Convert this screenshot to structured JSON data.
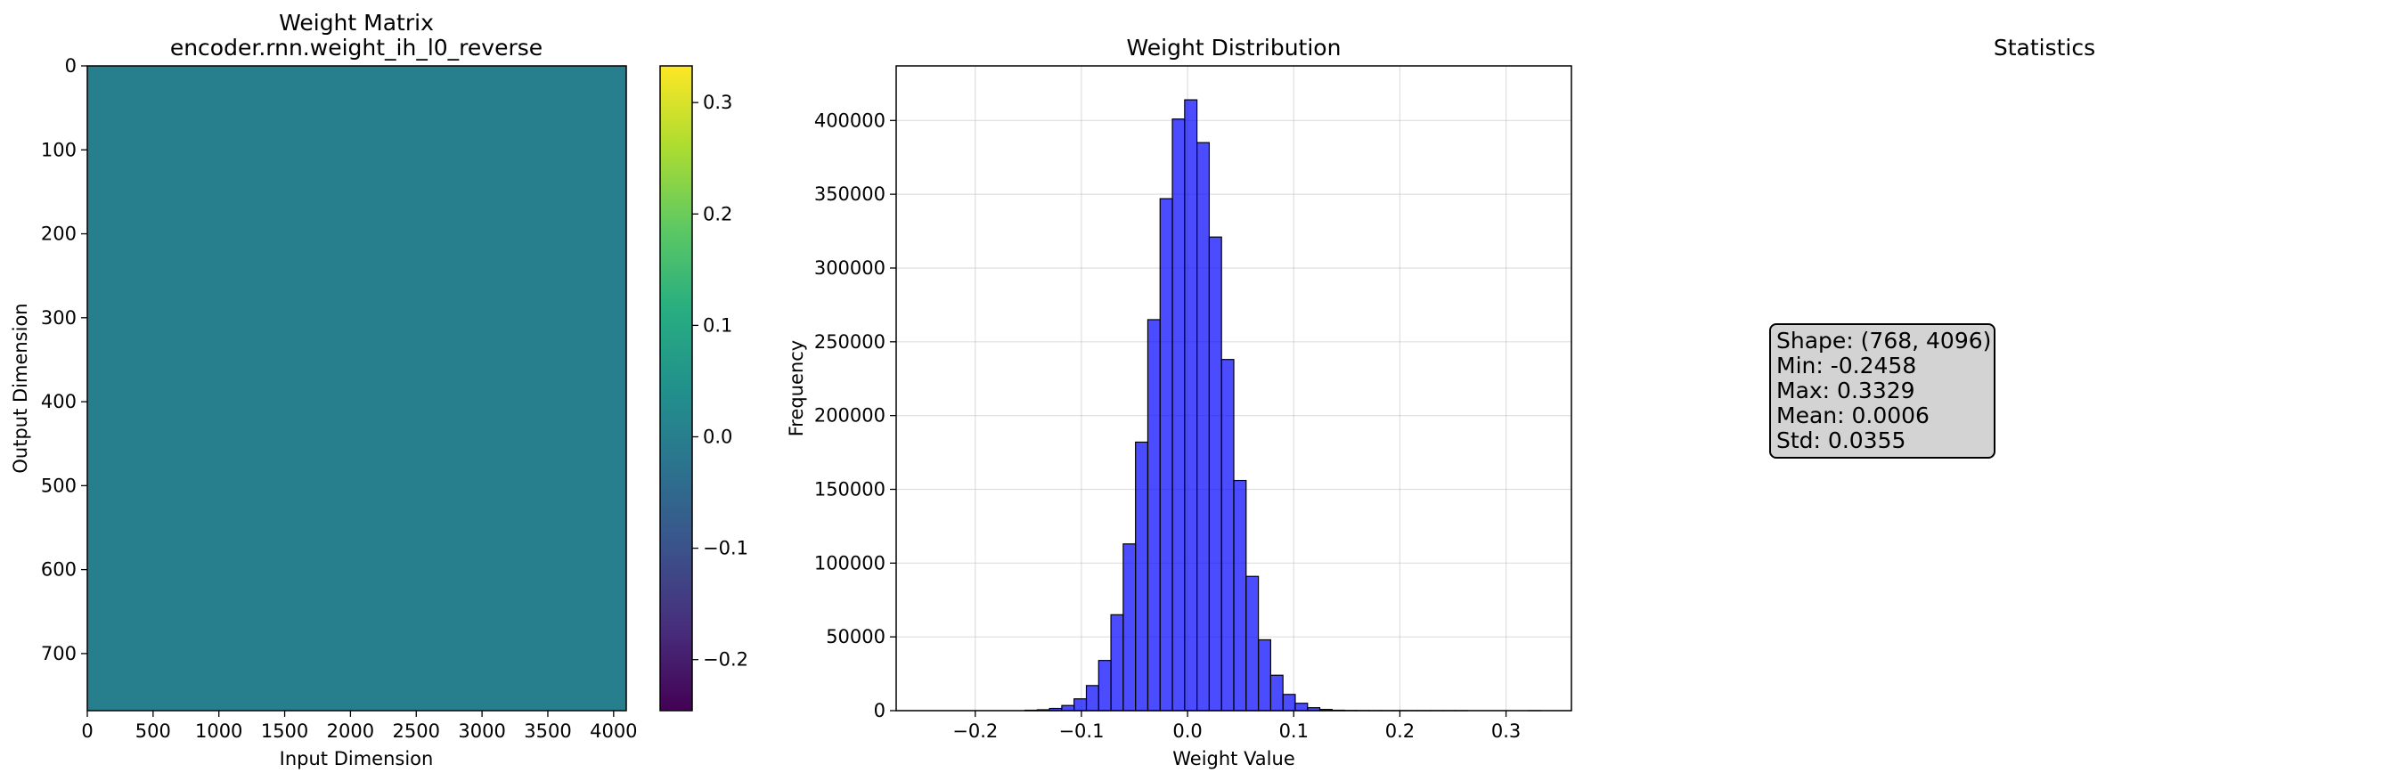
{
  "chart_data": [
    {
      "type": "heatmap",
      "title": "Weight Matrix",
      "subtitle": "encoder.rnn.weight_ih_l0_reverse",
      "xlabel": "Input Dimension",
      "ylabel": "Output Dimension",
      "xlim": [
        0,
        4096
      ],
      "ylim": [
        768,
        0
      ],
      "xticks": [
        0,
        500,
        1000,
        1500,
        2000,
        2500,
        3000,
        3500,
        4000
      ],
      "yticks": [
        0,
        100,
        200,
        300,
        400,
        500,
        600,
        700
      ],
      "colormap": "viridis",
      "fill_value": 0.0006,
      "colorbar": {
        "min": -0.2458,
        "max": 0.3329,
        "ticks": [
          -0.2,
          -0.1,
          0.0,
          0.1,
          0.2,
          0.3
        ],
        "tick_labels": [
          "−0.2",
          "−0.1",
          "0.0",
          "0.1",
          "0.2",
          "0.3"
        ]
      }
    },
    {
      "type": "bar",
      "title": "Weight Distribution",
      "xlabel": "Weight Value",
      "ylabel": "Frequency",
      "xlim": [
        -0.2745,
        0.3616
      ],
      "ylim": [
        0,
        437000
      ],
      "grid": true,
      "bar_color": "#0000ff",
      "bar_alpha": 0.7,
      "edge_color": "#000000",
      "xticks": [
        -0.2,
        -0.1,
        0.0,
        0.1,
        0.2,
        0.3
      ],
      "xtick_labels": [
        "−0.2",
        "−0.1",
        "0.0",
        "0.1",
        "0.2",
        "0.3"
      ],
      "yticks": [
        0,
        50000,
        100000,
        150000,
        200000,
        250000,
        300000,
        350000,
        400000
      ],
      "bins": {
        "start": -0.2458,
        "end": 0.3329,
        "count": 50
      },
      "values": [
        0,
        0,
        0,
        0,
        0,
        0,
        0,
        0,
        300,
        600,
        1500,
        3500,
        8000,
        17000,
        34000,
        65000,
        113000,
        182000,
        265000,
        347000,
        401000,
        414000,
        385000,
        321000,
        238000,
        156000,
        91000,
        48000,
        24000,
        11000,
        5000,
        2000,
        800,
        300,
        120,
        60,
        30,
        15,
        8,
        5,
        3,
        2,
        1,
        1,
        0,
        0,
        0,
        0,
        0,
        1
      ]
    }
  ],
  "statistics": {
    "title": "Statistics",
    "lines": [
      "Shape: (768, 4096)",
      "Min: -0.2458",
      "Max: 0.3329",
      "Mean: 0.0006",
      "Std: 0.0355"
    ]
  }
}
